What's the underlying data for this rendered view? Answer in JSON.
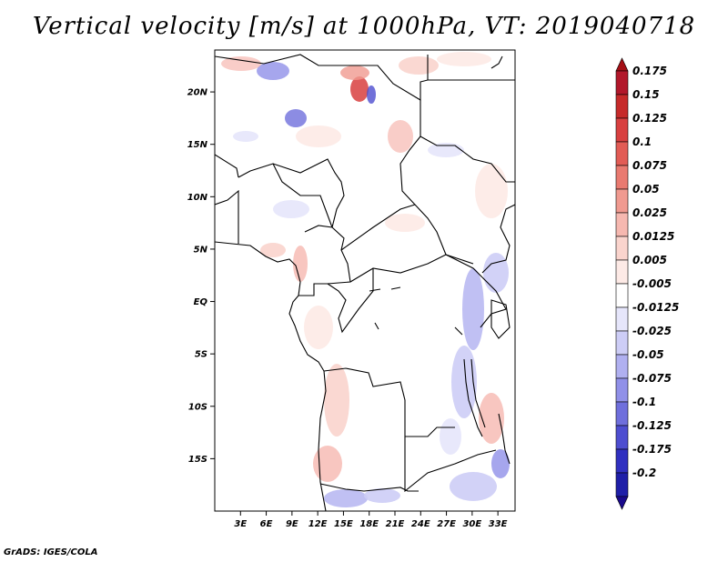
{
  "title": "Vertical velocity [m/s] at 1000hPa, VT: 2019040718",
  "footer": "GrADS: IGES/COLA",
  "map": {
    "lon_range": [
      0,
      35
    ],
    "lat_range": [
      -20,
      24
    ],
    "lat_ticks": [
      {
        "value": 20,
        "label": "20N"
      },
      {
        "value": 15,
        "label": "15N"
      },
      {
        "value": 10,
        "label": "10N"
      },
      {
        "value": 5,
        "label": "5N"
      },
      {
        "value": 0,
        "label": "EQ"
      },
      {
        "value": -5,
        "label": "5S"
      },
      {
        "value": -10,
        "label": "10S"
      },
      {
        "value": -15,
        "label": "15S"
      }
    ],
    "lon_ticks": [
      {
        "value": 3,
        "label": "3E"
      },
      {
        "value": 6,
        "label": "6E"
      },
      {
        "value": 9,
        "label": "9E"
      },
      {
        "value": 12,
        "label": "12E"
      },
      {
        "value": 15,
        "label": "15E"
      },
      {
        "value": 18,
        "label": "18E"
      },
      {
        "value": 21,
        "label": "21E"
      },
      {
        "value": 24,
        "label": "24E"
      },
      {
        "value": 27,
        "label": "27E"
      },
      {
        "value": 30,
        "label": "30E"
      },
      {
        "value": 33,
        "label": "33E"
      }
    ]
  },
  "colorbar": {
    "top_color": "#a50f15",
    "bottom_color": "#1a0a8c",
    "levels": [
      {
        "label": "0.175",
        "color": "#b2182b"
      },
      {
        "label": "0.15",
        "color": "#c62a2a"
      },
      {
        "label": "0.125",
        "color": "#d84040"
      },
      {
        "label": "0.1",
        "color": "#e25c55"
      },
      {
        "label": "0.075",
        "color": "#e97a70"
      },
      {
        "label": "0.05",
        "color": "#f09a90"
      },
      {
        "label": "0.025",
        "color": "#f6b8b0"
      },
      {
        "label": "0.0125",
        "color": "#fad4cd"
      },
      {
        "label": "0.005",
        "color": "#fdeae6"
      },
      {
        "label": "-0.005",
        "color": "#ffffff"
      },
      {
        "label": "-0.0125",
        "color": "#e6e6fb"
      },
      {
        "label": "-0.025",
        "color": "#cdcdf6"
      },
      {
        "label": "-0.05",
        "color": "#b0b0f0"
      },
      {
        "label": "-0.075",
        "color": "#9090e8"
      },
      {
        "label": "-0.1",
        "color": "#6f6fdc"
      },
      {
        "label": "-0.125",
        "color": "#4e4ed0"
      },
      {
        "label": "-0.175",
        "color": "#3030c0"
      },
      {
        "label": "-0.2",
        "color": "#1f1fa8"
      }
    ]
  }
}
